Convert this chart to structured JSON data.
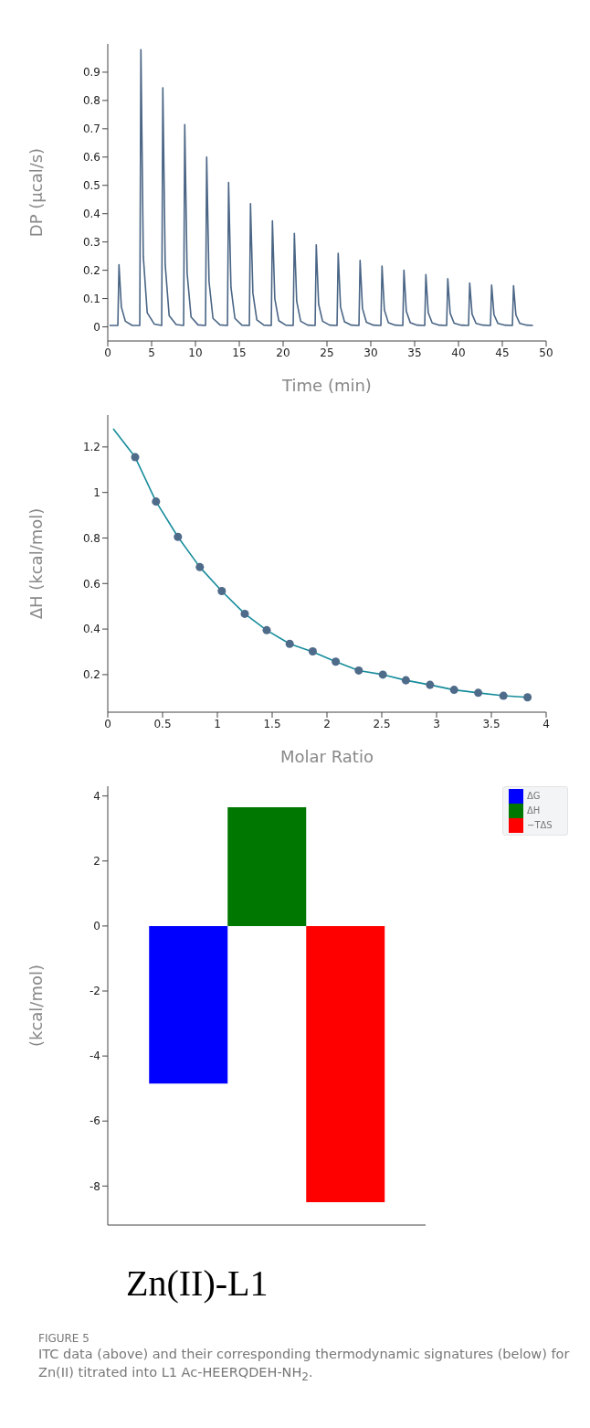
{
  "chart_data": [
    {
      "type": "line",
      "xlabel": "Time (min)",
      "ylabel": "DP (µcal/s)",
      "xlim": [
        0,
        50
      ],
      "xticks": [
        0,
        5,
        10,
        15,
        20,
        25,
        30,
        35,
        40,
        45,
        50
      ],
      "ylim": [
        -0.05,
        1.0
      ],
      "yticks": [
        0,
        0.1,
        0.2,
        0.3,
        0.4,
        0.5,
        0.6,
        0.7,
        0.8,
        0.9
      ],
      "series": [
        {
          "color": "#4a6585",
          "x": [
            0.2,
            1.15,
            1.28,
            1.55,
            2.0,
            2.8,
            3.65,
            3.78,
            4.05,
            4.5,
            5.3,
            6.15,
            6.28,
            6.55,
            7.0,
            7.8,
            8.65,
            8.78,
            9.05,
            9.5,
            10.3,
            11.15,
            11.28,
            11.55,
            12.0,
            12.8,
            13.65,
            13.78,
            14.05,
            14.5,
            15.3,
            16.15,
            16.28,
            16.55,
            17.0,
            17.8,
            18.65,
            18.78,
            19.05,
            19.5,
            20.3,
            21.15,
            21.28,
            21.55,
            22.0,
            22.8,
            23.65,
            23.78,
            24.05,
            24.5,
            25.3,
            26.15,
            26.28,
            26.55,
            27.0,
            27.8,
            28.65,
            28.78,
            29.05,
            29.5,
            30.3,
            31.15,
            31.28,
            31.55,
            32.0,
            32.8,
            33.65,
            33.78,
            34.05,
            34.5,
            35.3,
            36.15,
            36.28,
            36.55,
            37.0,
            37.8,
            38.65,
            38.78,
            39.05,
            39.5,
            40.3,
            41.15,
            41.28,
            41.55,
            42.0,
            42.8,
            43.65,
            43.78,
            44.05,
            44.5,
            45.3,
            46.15,
            46.28,
            46.55,
            47.0,
            47.8,
            48.5
          ],
          "values": [
            0.005,
            0.005,
            0.22,
            0.07,
            0.02,
            0.005,
            0.005,
            0.98,
            0.25,
            0.05,
            0.01,
            0.005,
            0.845,
            0.22,
            0.04,
            0.008,
            0.005,
            0.715,
            0.19,
            0.035,
            0.007,
            0.005,
            0.6,
            0.16,
            0.03,
            0.007,
            0.005,
            0.51,
            0.14,
            0.03,
            0.006,
            0.005,
            0.435,
            0.12,
            0.025,
            0.006,
            0.005,
            0.375,
            0.1,
            0.022,
            0.006,
            0.005,
            0.33,
            0.09,
            0.02,
            0.006,
            0.005,
            0.29,
            0.08,
            0.02,
            0.006,
            0.005,
            0.26,
            0.07,
            0.018,
            0.006,
            0.005,
            0.235,
            0.065,
            0.016,
            0.006,
            0.005,
            0.215,
            0.06,
            0.015,
            0.006,
            0.005,
            0.2,
            0.055,
            0.015,
            0.006,
            0.005,
            0.185,
            0.05,
            0.014,
            0.006,
            0.005,
            0.17,
            0.048,
            0.013,
            0.006,
            0.005,
            0.155,
            0.045,
            0.012,
            0.006,
            0.005,
            0.148,
            0.043,
            0.012,
            0.006,
            0.005,
            0.145,
            0.042,
            0.012,
            0.006,
            0.005
          ]
        }
      ]
    },
    {
      "type": "line",
      "xlabel": "Molar Ratio",
      "ylabel": "ΔH (kcal/mol)",
      "xlim": [
        0,
        4
      ],
      "xticks": [
        0,
        0.5,
        1,
        1.5,
        2,
        2.5,
        3,
        3.5,
        4
      ],
      "ylim": [
        0.035,
        1.34
      ],
      "yticks": [
        0.2,
        0.4,
        0.6,
        0.8,
        1,
        1.2
      ],
      "series": [
        {
          "type": "line",
          "marker": "none",
          "color": "#178c9b",
          "x": [
            0.05,
            0.25,
            0.44,
            0.64,
            0.84,
            1.04,
            1.25,
            1.45,
            1.66,
            1.87,
            2.08,
            2.29,
            2.51,
            2.72,
            2.94,
            3.16,
            3.38,
            3.61,
            3.83
          ],
          "values": [
            1.28,
            1.155,
            0.96,
            0.805,
            0.672,
            0.567,
            0.467,
            0.395,
            0.335,
            0.3,
            0.257,
            0.218,
            0.2,
            0.175,
            0.155,
            0.133,
            0.12,
            0.107,
            0.1
          ]
        },
        {
          "type": "scatter",
          "marker": "circle",
          "color": "#4f6b8a",
          "x": [
            0.25,
            0.44,
            0.64,
            0.84,
            1.04,
            1.25,
            1.45,
            1.66,
            1.87,
            2.08,
            2.29,
            2.51,
            2.72,
            2.94,
            3.16,
            3.38,
            3.61,
            3.83
          ],
          "values": [
            1.155,
            0.96,
            0.805,
            0.672,
            0.567,
            0.467,
            0.395,
            0.335,
            0.302,
            0.257,
            0.218,
            0.2,
            0.175,
            0.155,
            0.133,
            0.12,
            0.107,
            0.1
          ]
        }
      ]
    },
    {
      "type": "bar",
      "ylabel": "(kcal/mol)",
      "categories": [
        null
      ],
      "ylim": [
        -9.2,
        4.3
      ],
      "yticks": [
        -8,
        -6,
        -4,
        -2,
        0,
        2,
        4
      ],
      "legend": "top right",
      "series": [
        {
          "name": "ΔG",
          "color": "#0000ff",
          "values": [
            -4.85
          ]
        },
        {
          "name": "ΔH",
          "color": "#007700",
          "values": [
            3.65
          ]
        },
        {
          "name": "−TΔS",
          "color": "#ff0000",
          "values": [
            -8.5
          ]
        }
      ],
      "annotations": [
        "Zn(II)-L1",
        "FIGURE 5",
        "ITC data (above) and their corresponding thermodynamic signatures (below) for Zn(II) titrated into L1 Ac-HEERQDEH-NH$_{2}$."
      ]
    }
  ]
}
